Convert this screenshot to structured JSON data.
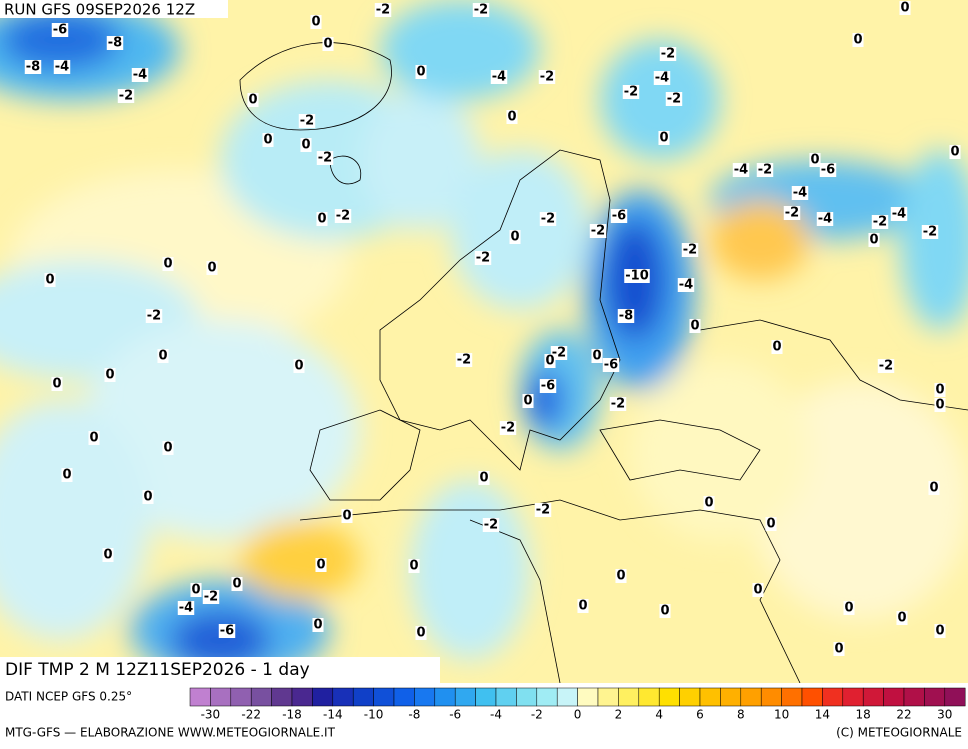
{
  "header": {
    "run": "RUN GFS 09SEP2026 12Z"
  },
  "map": {
    "title": "DIF TMP 2 M 12Z11SEP2026 - 1 day",
    "contour_labels": [
      -6,
      -8,
      -8,
      -4,
      -4,
      -2,
      -2,
      -2,
      0,
      0,
      0,
      -4,
      -2,
      -2,
      -4,
      -2,
      -2,
      0,
      0,
      -2,
      0,
      0,
      -2,
      0,
      -4,
      -2,
      -6,
      0,
      -4,
      -2,
      -4,
      -2,
      -4,
      -2,
      0,
      -2,
      -2,
      -6,
      -2,
      -2,
      -10,
      -4,
      -8,
      -2,
      0,
      0,
      0,
      0,
      -2,
      0,
      0,
      -2,
      -2,
      0,
      -6,
      0,
      -6,
      0,
      0,
      0,
      0,
      -2,
      0,
      -2,
      0,
      0,
      0,
      0,
      0,
      -2,
      -2,
      0,
      0,
      0,
      0,
      0,
      0,
      0,
      0,
      -2,
      -4,
      -6,
      0,
      0,
      0,
      0,
      0,
      0,
      0,
      0,
      0,
      0,
      -2,
      0,
      0,
      0,
      0,
      0,
      0,
      0
    ]
  },
  "legend": {
    "source": "DATI NCEP GFS 0.25°",
    "colors": [
      "#c080d0",
      "#a870c0",
      "#9060b0",
      "#7850a0",
      "#603890",
      "#4a2890",
      "#2020a0",
      "#1830b8",
      "#1040c8",
      "#1050d8",
      "#1060e8",
      "#1878f0",
      "#2090f0",
      "#30a8f0",
      "#40c0f0",
      "#60d0f0",
      "#80e0f0",
      "#a0ecf4",
      "#c8f4f8",
      "#fffbc0",
      "#fff490",
      "#fff060",
      "#ffe830",
      "#ffe000",
      "#ffd000",
      "#ffc000",
      "#ffb000",
      "#ffa000",
      "#ff8c00",
      "#ff7000",
      "#ff5000",
      "#f03020",
      "#e02030",
      "#d01838",
      "#c01040",
      "#b01048",
      "#a01050",
      "#901058"
    ],
    "ticks": [
      -30,
      -22,
      -18,
      -14,
      -10,
      -8,
      -6,
      -4,
      -2,
      0,
      2,
      4,
      6,
      8,
      10,
      14,
      18,
      22,
      30
    ]
  },
  "footer": {
    "left": "MTG-GFS — ELABORAZIONE WWW.METEOGIORNALE.IT",
    "right": "(C) METEOGIORNALE"
  }
}
